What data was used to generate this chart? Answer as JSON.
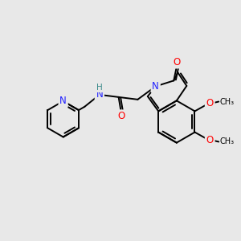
{
  "background_color": "#e8e8e8",
  "bond_color": "#000000",
  "atom_colors": {
    "N": "#2020ff",
    "O": "#ff0000",
    "H": "#3a8a8a",
    "C": "#000000"
  },
  "bond_width": 1.4,
  "font_size_atoms": 8.5,
  "font_size_small": 7.0,
  "figsize": [
    3.0,
    3.0
  ],
  "dpi": 100
}
